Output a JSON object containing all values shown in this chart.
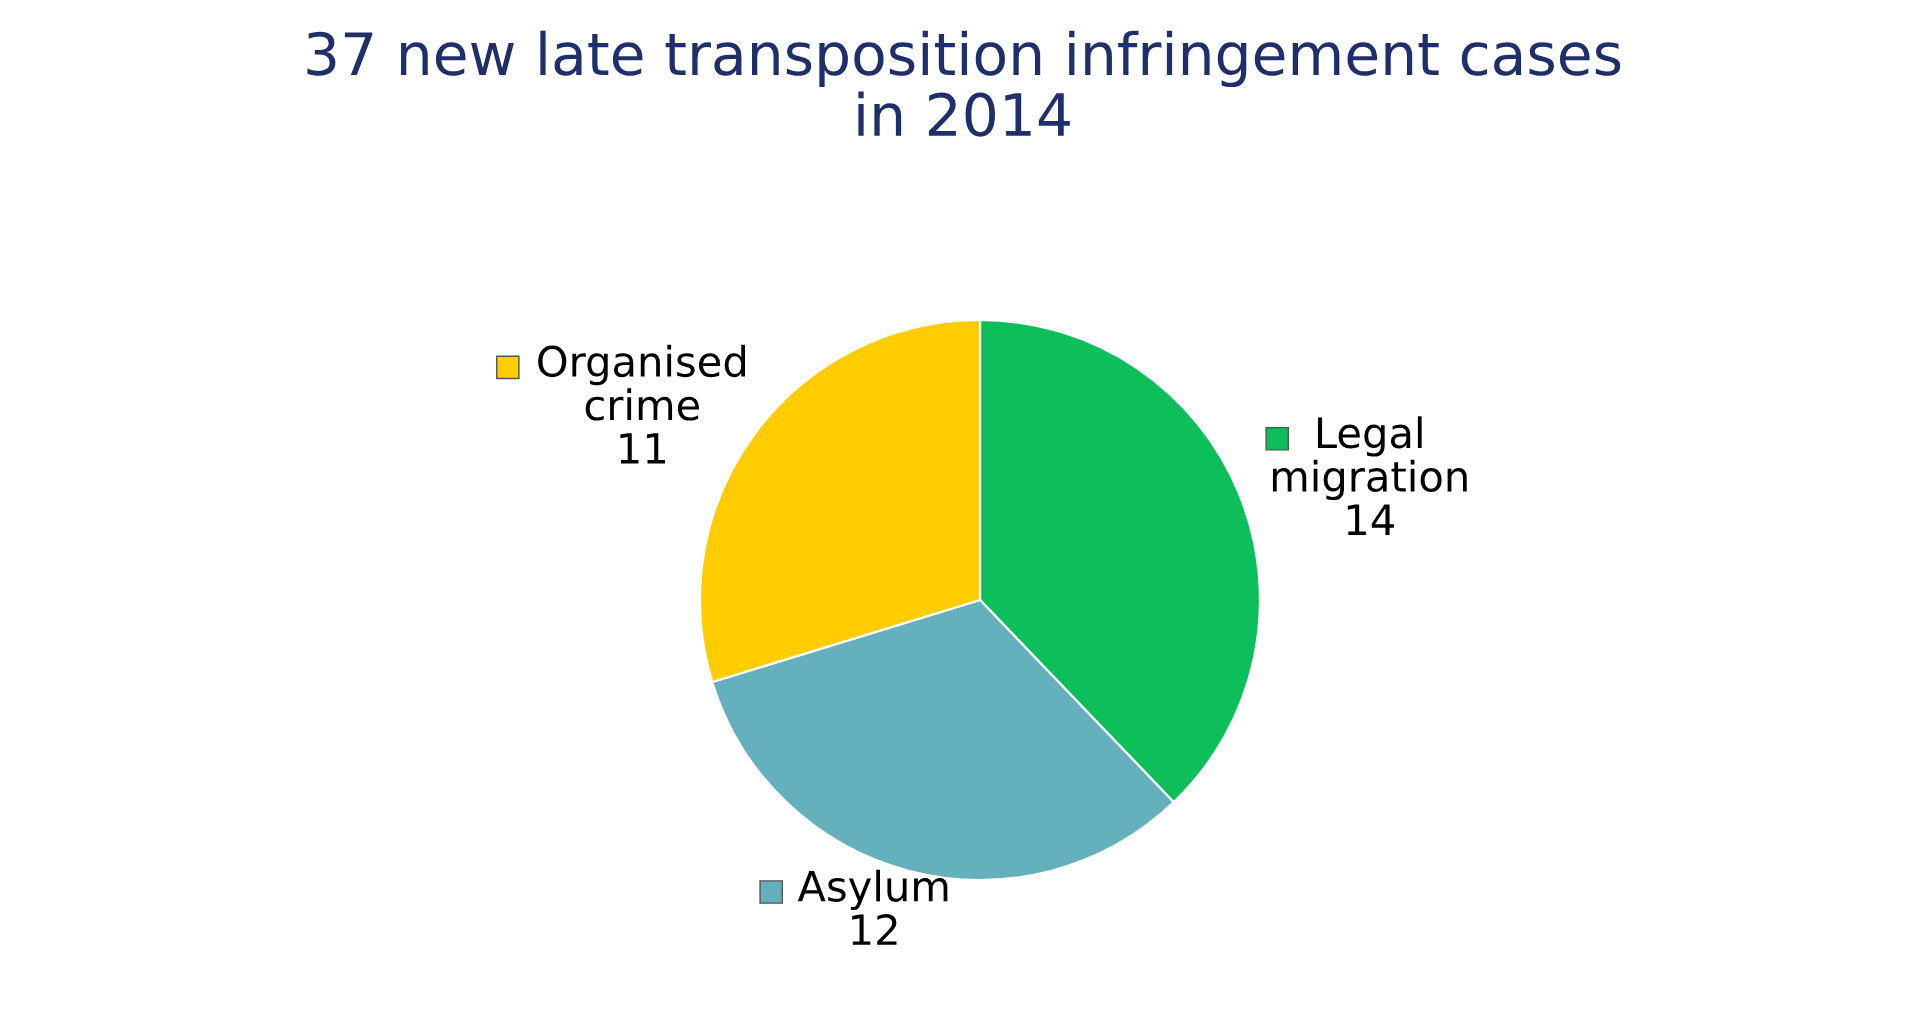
{
  "chart_data": {
    "type": "pie",
    "title": "37 new late transposition infringement cases\nin 2014",
    "categories": [
      "Legal\nmigration",
      "Asylum",
      "Organised\ncrime"
    ],
    "values": [
      14,
      12,
      11
    ],
    "colors": [
      "#0cbf5a",
      "#64b0bc",
      "#ffcc00"
    ],
    "data_labels": true,
    "legend": "right"
  }
}
